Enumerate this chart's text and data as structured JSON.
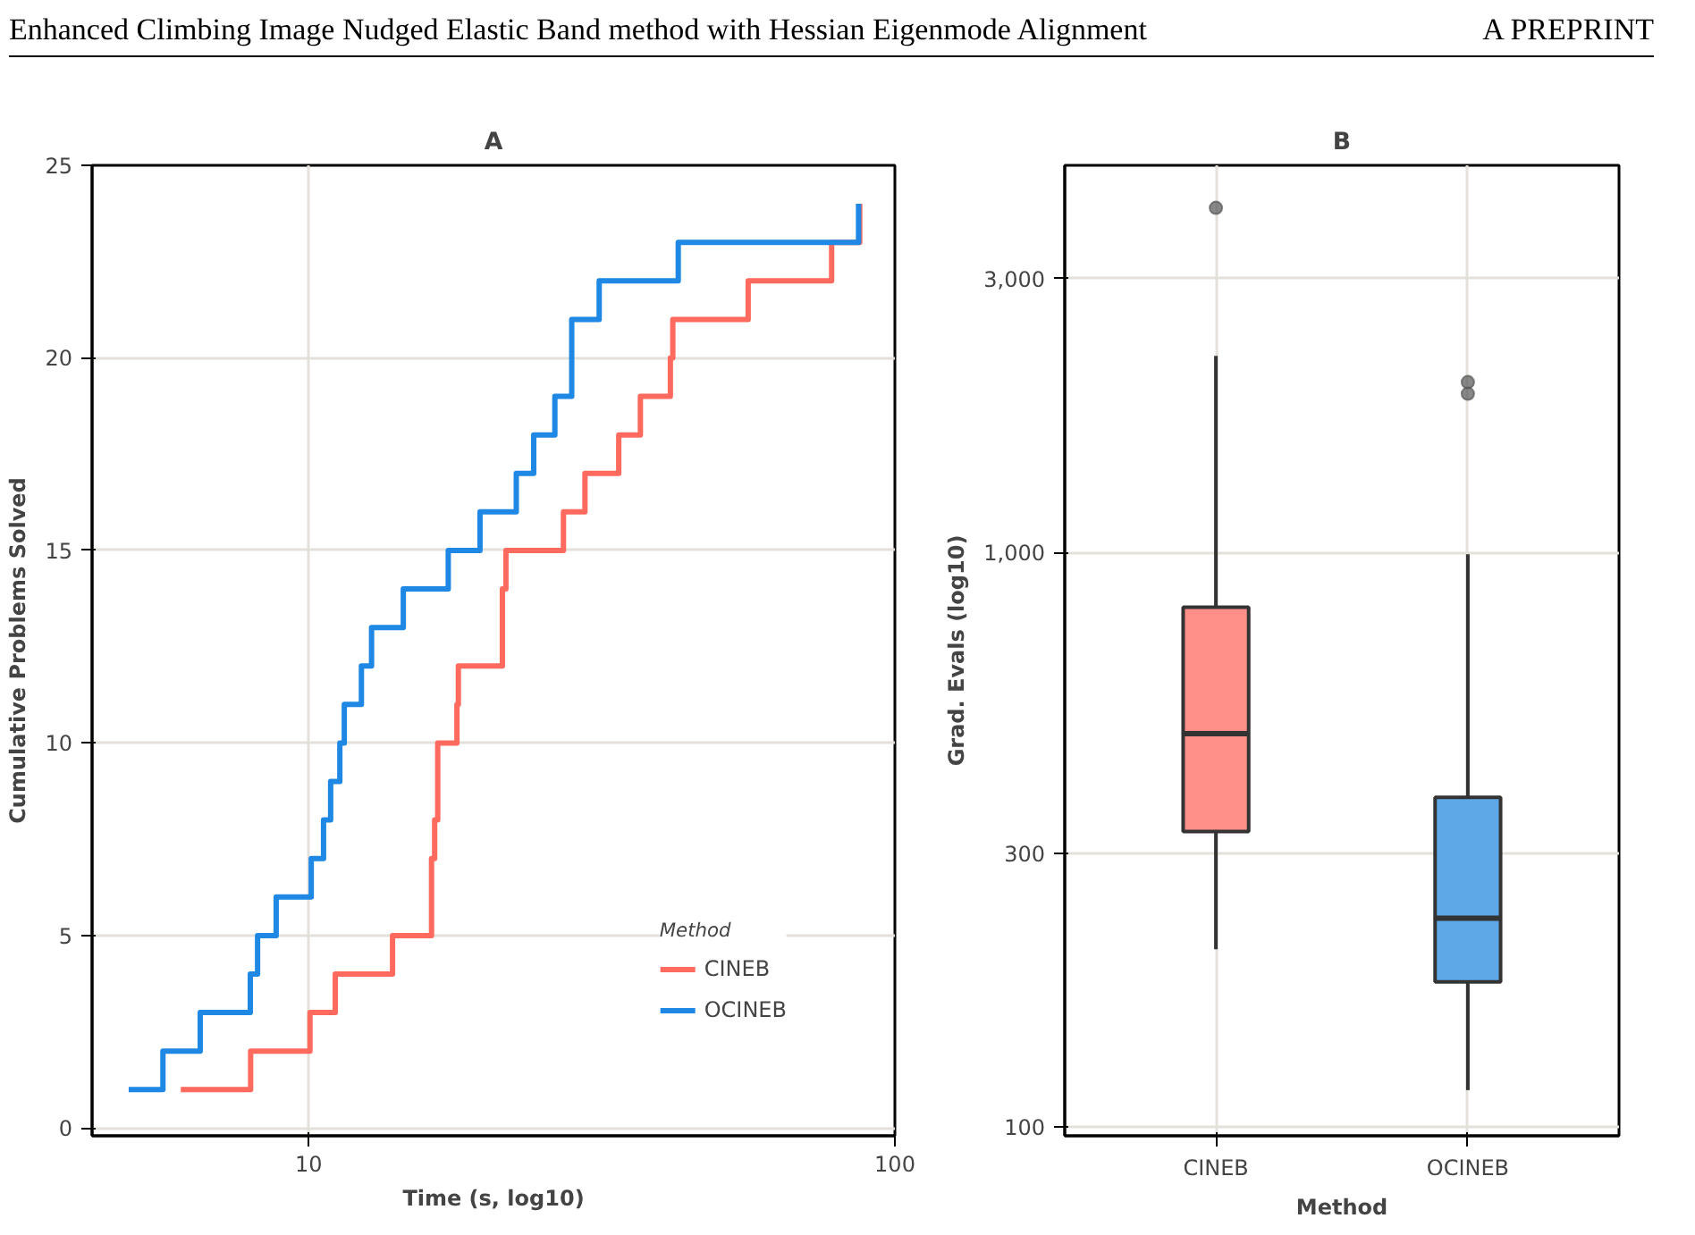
{
  "chart_data": [
    {
      "type": "step",
      "title": "A",
      "xlabel": "Time (s, log10)",
      "ylabel": "Cumulative Problems Solved",
      "legend_title": "Method",
      "legend": "bottom right",
      "log": "x",
      "grid": true,
      "line_style": "solid",
      "annotations": [
        "Enhanced Climbing Image Nudged Elastic Band method with Hessian Eigenmode Alignment",
        "A PREPRINT"
      ],
      "xlim": [
        4.27,
        100
      ],
      "xticks": [
        10,
        100
      ],
      "ylim": [
        -0.2,
        25
      ],
      "yticks": [
        0,
        5,
        10,
        15,
        20,
        25
      ],
      "series": [
        {
          "name": "CINEB",
          "color": "#ff6a5f",
          "x": [
            6.05,
            7.96,
            10.05,
            11.1,
            13.9,
            16.2,
            16.2,
            16.4,
            16.6,
            16.6,
            17.9,
            18.0,
            21.4,
            21.4,
            21.7,
            27.2,
            29.6,
            33.8,
            36.8,
            41.4,
            41.8,
            56.2,
            78.0,
            87.1
          ],
          "values": [
            1,
            2,
            3,
            4,
            5,
            6,
            7,
            8,
            9,
            10,
            11,
            12,
            13,
            14,
            15,
            16,
            17,
            18,
            19,
            20,
            21,
            22,
            23,
            24
          ]
        },
        {
          "name": "OCINEB",
          "color": "#1f88e5",
          "x": [
            4.93,
            5.64,
            6.53,
            7.95,
            8.18,
            8.8,
            10.1,
            10.6,
            10.9,
            11.3,
            11.5,
            12.3,
            12.8,
            14.5,
            17.3,
            19.6,
            22.6,
            24.2,
            26.3,
            28.1,
            28.1,
            31.3,
            42.7,
            86.7
          ],
          "values": [
            1,
            2,
            3,
            4,
            5,
            6,
            7,
            8,
            9,
            10,
            11,
            12,
            13,
            14,
            15,
            16,
            17,
            18,
            19,
            20,
            21,
            22,
            23,
            24
          ]
        }
      ]
    },
    {
      "type": "box",
      "title": "B",
      "xlabel": "Method",
      "ylabel": "Grad. Evals (log10)",
      "log": "y",
      "grid": true,
      "legend": false,
      "categories": [
        "CINEB",
        "OCINEB"
      ],
      "colors": [
        "#ff8f88",
        "#5fa8e8"
      ],
      "ylim": [
        96.6,
        4720
      ],
      "yticks": [
        {
          "value": 100,
          "label": "100"
        },
        {
          "value": 300,
          "label": "300"
        },
        {
          "value": 1000,
          "label": "1,000"
        },
        {
          "value": 3000,
          "label": "3,000"
        }
      ],
      "boxes": [
        {
          "low": 204,
          "q1": 327,
          "median": 484,
          "q3": 803,
          "high": 2200,
          "outliers": [
            3980
          ]
        },
        {
          "low": 116,
          "q1": 179,
          "median": 231,
          "q3": 375,
          "high": 993,
          "outliers": [
            1890,
            1980
          ]
        }
      ]
    }
  ]
}
